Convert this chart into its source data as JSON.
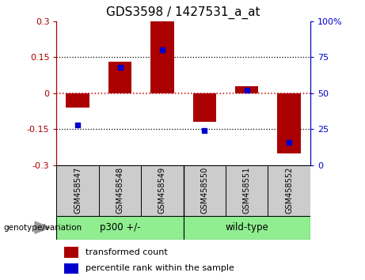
{
  "title": "GDS3598 / 1427531_a_at",
  "categories": [
    "GSM458547",
    "GSM458548",
    "GSM458549",
    "GSM458550",
    "GSM458551",
    "GSM458552"
  ],
  "red_values": [
    -0.06,
    0.13,
    0.3,
    -0.12,
    0.03,
    -0.25
  ],
  "blue_values": [
    28,
    68,
    80,
    24,
    52,
    16
  ],
  "ylim": [
    -0.3,
    0.3
  ],
  "yticks": [
    -0.3,
    -0.15,
    0,
    0.15,
    0.3
  ],
  "right_ylim": [
    0,
    100
  ],
  "right_yticks": [
    0,
    25,
    50,
    75,
    100
  ],
  "right_ytick_labels": [
    "0",
    "25",
    "50",
    "75",
    "100%"
  ],
  "red_color": "#aa0000",
  "blue_color": "#0000cc",
  "bar_width": 0.55,
  "xlabel_group": "genotype/variation",
  "legend_red": "transformed count",
  "legend_blue": "percentile rank within the sample",
  "hline_color": "#cc0000",
  "dotted_color": "black",
  "tick_label_box_color": "#cccccc",
  "title_fontsize": 11,
  "axis_fontsize": 8,
  "legend_fontsize": 8,
  "cat_fontsize": 7
}
